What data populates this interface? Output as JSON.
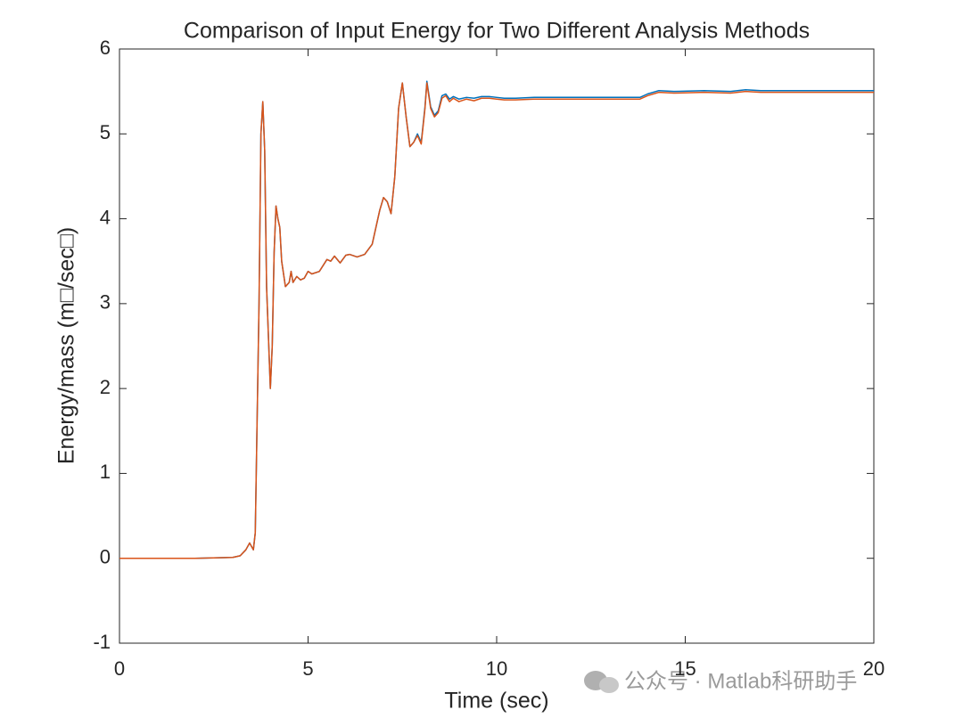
{
  "chart_data": {
    "type": "line",
    "title": "Comparison of Input Energy for Two Different Analysis Methods",
    "xlabel": "Time (sec)",
    "ylabel": "Energy/mass (m□/sec□)",
    "watermark": "公众号 · Matlab科研助手",
    "x": [
      0,
      1,
      2,
      3,
      3.2,
      3.35,
      3.45,
      3.55,
      3.6,
      3.7,
      3.75,
      3.8,
      3.85,
      3.9,
      4.0,
      4.05,
      4.1,
      4.15,
      4.2,
      4.25,
      4.3,
      4.4,
      4.5,
      4.55,
      4.6,
      4.7,
      4.8,
      4.9,
      5.0,
      5.1,
      5.3,
      5.5,
      5.6,
      5.7,
      5.85,
      6.0,
      6.1,
      6.3,
      6.5,
      6.7,
      6.9,
      7.0,
      7.1,
      7.2,
      7.3,
      7.4,
      7.5,
      7.6,
      7.7,
      7.8,
      7.9,
      8.0,
      8.1,
      8.15,
      8.25,
      8.35,
      8.45,
      8.55,
      8.65,
      8.75,
      8.85,
      9.0,
      9.2,
      9.4,
      9.6,
      9.8,
      10.0,
      10.2,
      10.5,
      11,
      12,
      13,
      13.8,
      14,
      14.3,
      14.7,
      15.5,
      16.2,
      16.6,
      17,
      18,
      19,
      20
    ],
    "series": [
      {
        "color": "#0072BD",
        "values": [
          0,
          0,
          0,
          0.01,
          0.03,
          0.1,
          0.18,
          0.1,
          0.3,
          3.0,
          5.0,
          5.38,
          4.8,
          3.2,
          2.0,
          2.5,
          3.6,
          4.15,
          4.0,
          3.9,
          3.5,
          3.2,
          3.25,
          3.38,
          3.25,
          3.32,
          3.28,
          3.3,
          3.38,
          3.35,
          3.38,
          3.52,
          3.5,
          3.56,
          3.48,
          3.57,
          3.58,
          3.55,
          3.58,
          3.7,
          4.1,
          4.25,
          4.2,
          4.06,
          4.5,
          5.3,
          5.6,
          5.2,
          4.85,
          4.9,
          5.0,
          4.9,
          5.32,
          5.62,
          5.32,
          5.22,
          5.27,
          5.45,
          5.47,
          5.41,
          5.44,
          5.41,
          5.43,
          5.42,
          5.44,
          5.44,
          5.43,
          5.42,
          5.42,
          5.43,
          5.43,
          5.43,
          5.43,
          5.47,
          5.51,
          5.5,
          5.51,
          5.5,
          5.52,
          5.51,
          5.51,
          5.51,
          5.51
        ]
      },
      {
        "color": "#D95319",
        "values": [
          0,
          0,
          0,
          0.01,
          0.03,
          0.1,
          0.18,
          0.1,
          0.3,
          3.0,
          5.0,
          5.38,
          4.8,
          3.2,
          2.0,
          2.5,
          3.6,
          4.15,
          4.0,
          3.9,
          3.5,
          3.2,
          3.25,
          3.38,
          3.25,
          3.32,
          3.28,
          3.3,
          3.38,
          3.35,
          3.38,
          3.52,
          3.5,
          3.56,
          3.48,
          3.57,
          3.58,
          3.55,
          3.58,
          3.7,
          4.1,
          4.25,
          4.2,
          4.06,
          4.5,
          5.3,
          5.6,
          5.2,
          4.85,
          4.9,
          4.98,
          4.88,
          5.3,
          5.6,
          5.3,
          5.2,
          5.25,
          5.42,
          5.45,
          5.38,
          5.42,
          5.38,
          5.41,
          5.39,
          5.42,
          5.42,
          5.41,
          5.4,
          5.4,
          5.41,
          5.41,
          5.41,
          5.41,
          5.45,
          5.49,
          5.48,
          5.49,
          5.48,
          5.5,
          5.49,
          5.49,
          5.49,
          5.49
        ]
      }
    ],
    "xlim": [
      0,
      20
    ],
    "xticks": [
      0,
      5,
      10,
      15,
      20
    ],
    "ylim": [
      -1,
      6
    ],
    "yticks": [
      -1,
      0,
      1,
      2,
      3,
      4,
      5,
      6
    ],
    "grid": false
  }
}
